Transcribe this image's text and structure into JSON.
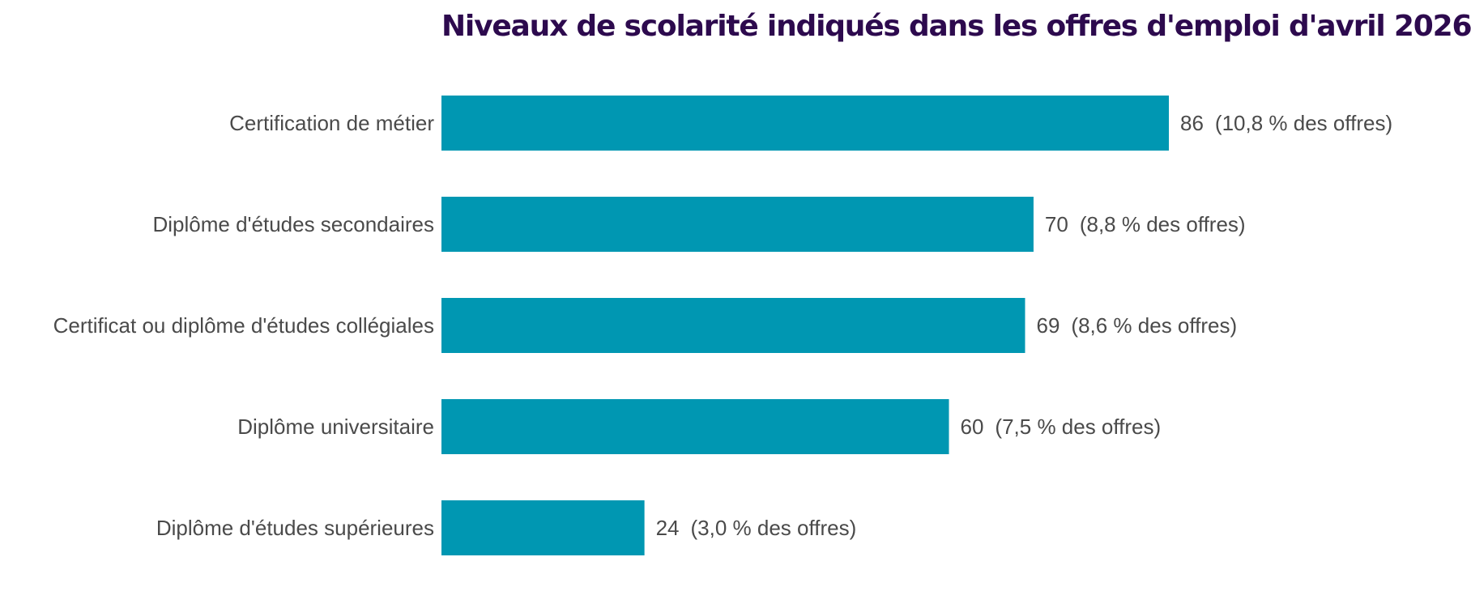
{
  "chart_data": {
    "type": "bar",
    "orientation": "horizontal",
    "title": "Niveaux de scolarité indiqués dans les offres d'emploi d'avril 2026",
    "categories": [
      "Certification de métier",
      "Diplôme d'études secondaires",
      "Certificat ou diplôme d'études collégiales",
      "Diplôme universitaire",
      "Diplôme d'études supérieures"
    ],
    "values": [
      86,
      70,
      69,
      60,
      24
    ],
    "shares": [
      "(10,8 % des offres)",
      "(8,8 % des offres)",
      "(8,6 % des offres)",
      "(7,5 % des offres)",
      "(3,0 % des offres)"
    ],
    "xlim": [
      0,
      86
    ],
    "bar_color": "#0097b2",
    "title_color": "#2d0a4e",
    "grid": false,
    "legend": "none"
  }
}
